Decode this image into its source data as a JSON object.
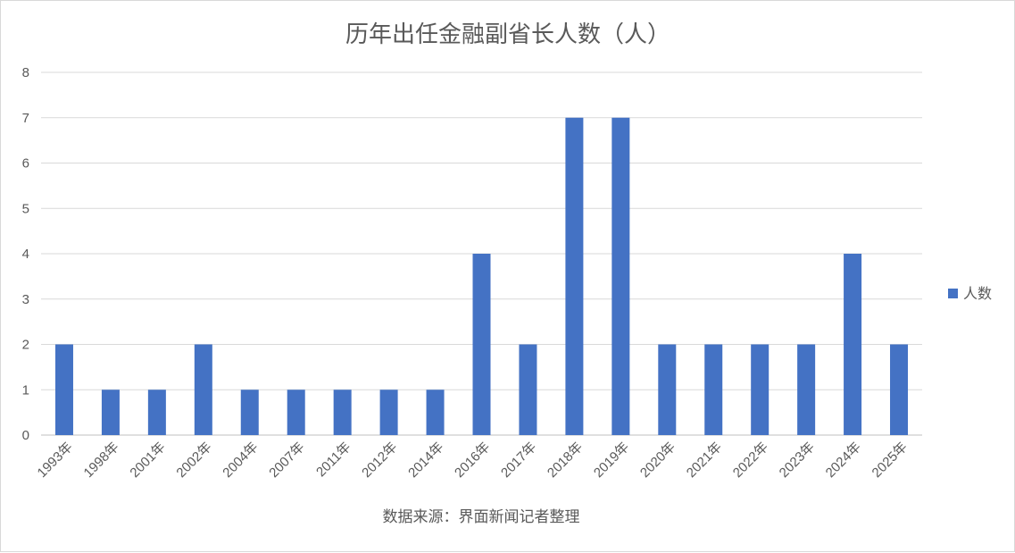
{
  "colors": {
    "bar": "#4472C4",
    "grid": "#d9d9d9",
    "axis": "#bfbfbf",
    "text": "#595959"
  },
  "legend": {
    "position": "right"
  },
  "chart_data": {
    "type": "bar",
    "title": "历年出任金融副省长人数（人）",
    "categories": [
      "1993年",
      "1998年",
      "2001年",
      "2002年",
      "2004年",
      "2007年",
      "2011年",
      "2012年",
      "2014年",
      "2016年",
      "2017年",
      "2018年",
      "2019年",
      "2020年",
      "2021年",
      "2022年",
      "2023年",
      "2024年",
      "2025年"
    ],
    "series": [
      {
        "name": "人数",
        "values": [
          2,
          1,
          1,
          2,
          1,
          1,
          1,
          1,
          1,
          4,
          2,
          7,
          7,
          2,
          2,
          2,
          2,
          4,
          2
        ]
      }
    ],
    "ylim": [
      0,
      8
    ],
    "yticks": [
      0,
      1,
      2,
      3,
      4,
      5,
      6,
      7,
      8
    ],
    "grid": true,
    "xlabel": "",
    "ylabel": "",
    "source_note": "数据来源：界面新闻记者整理"
  }
}
